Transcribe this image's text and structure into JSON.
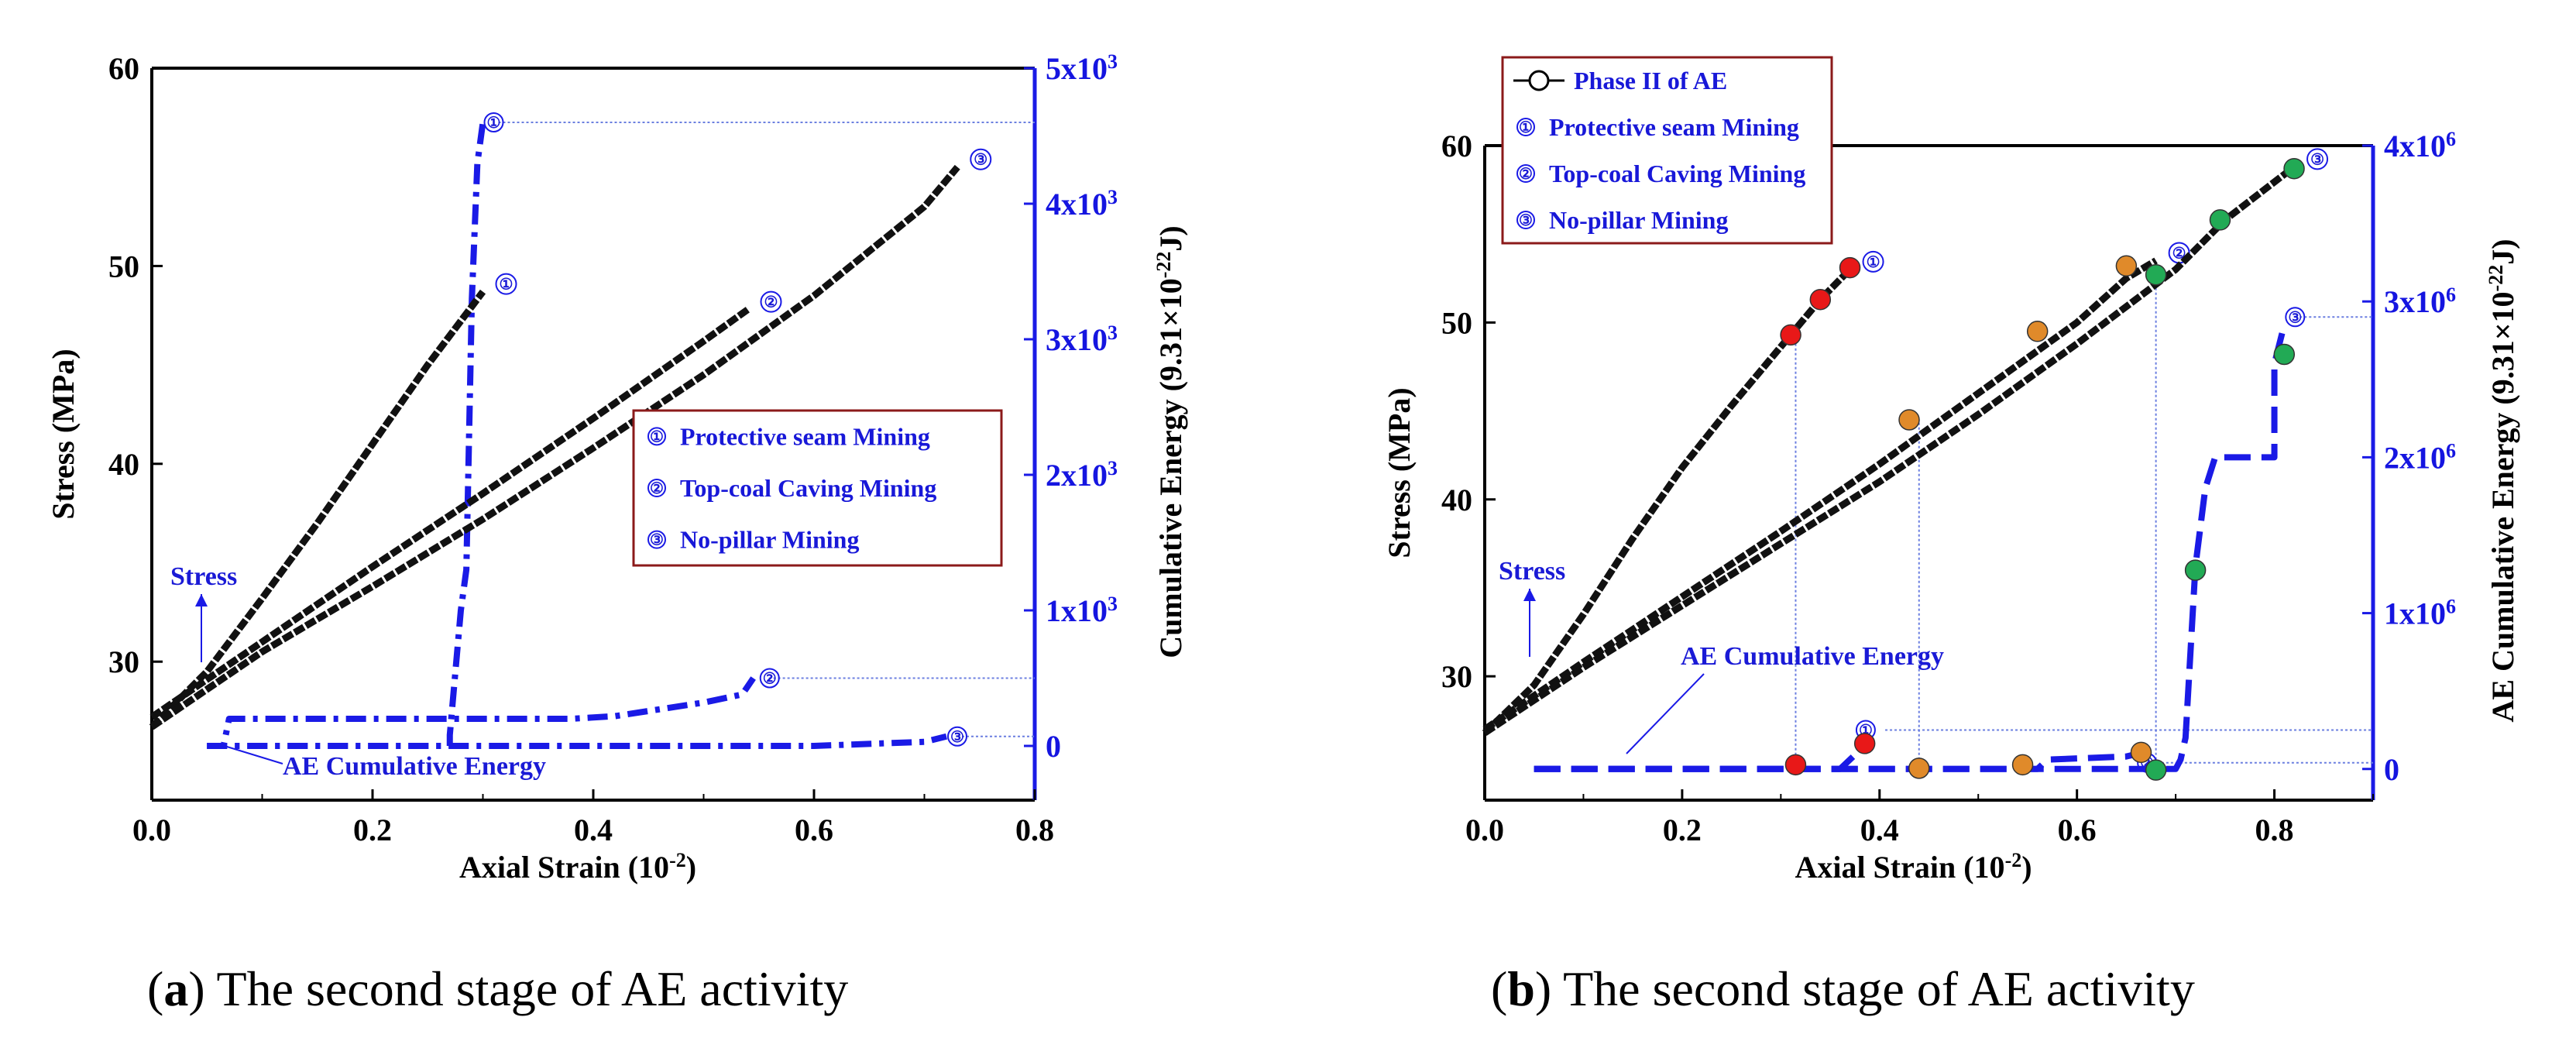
{
  "colors": {
    "stress": "#111111",
    "ae": "#1a1ae6",
    "red": "#e81818",
    "orange": "#e08a2a",
    "green": "#22aa55",
    "guide": "#6b7fe0"
  },
  "chart_data": [
    {
      "id": "a",
      "type": "line",
      "caption_label": "a",
      "caption_text": ") The second stage of AE activity",
      "caption_open": "(",
      "xlabel": "Axial Strain (10",
      "xlabel_sup": "-2",
      "xlabel_close": ")",
      "ylabel": "Stress (MPa)",
      "y2label": "Cumulative Energy (9.31×10",
      "y2label_sup": "-22",
      "y2label_close": "J)",
      "xlim": [
        0,
        0.8
      ],
      "ylim": [
        23,
        60
      ],
      "y2lim": [
        -400,
        5000
      ],
      "xticks": [
        {
          "v": 0.0,
          "label": "0.0"
        },
        {
          "v": 0.2,
          "label": "0.2"
        },
        {
          "v": 0.4,
          "label": "0.4"
        },
        {
          "v": 0.6,
          "label": "0.6"
        },
        {
          "v": 0.8,
          "label": "0.8"
        }
      ],
      "yticks": [
        {
          "v": 30,
          "label": "30"
        },
        {
          "v": 40,
          "label": "40"
        },
        {
          "v": 50,
          "label": "50"
        },
        {
          "v": 60,
          "label": "60"
        }
      ],
      "y2ticks": [
        {
          "v": 0,
          "label": "0",
          "sup": ""
        },
        {
          "v": 1000,
          "label": "1x10",
          "sup": "3"
        },
        {
          "v": 2000,
          "label": "2x10",
          "sup": "3"
        },
        {
          "v": 3000,
          "label": "3x10",
          "sup": "3"
        },
        {
          "v": 4000,
          "label": "4x10",
          "sup": "3"
        },
        {
          "v": 5000,
          "label": "5x10",
          "sup": "3"
        }
      ],
      "legend": {
        "placement": "middle-right",
        "entries": [
          {
            "marker": "①",
            "label": "Protective seam Mining"
          },
          {
            "marker": "②",
            "label": "Top-coal Caving Mining"
          },
          {
            "marker": "③",
            "label": "No-pillar Mining"
          }
        ]
      },
      "annotations": {
        "stress": "Stress",
        "ae": "AE Cumulative Energy"
      },
      "stress_series": [
        {
          "name": "Protective seam Mining",
          "marker": "①",
          "points": [
            [
              0.0,
              26.7
            ],
            [
              0.05,
              29.5
            ],
            [
              0.1,
              33.2
            ],
            [
              0.15,
              37.0
            ],
            [
              0.2,
              41.0
            ],
            [
              0.25,
              45.0
            ],
            [
              0.3,
              48.7
            ]
          ]
        },
        {
          "name": "Top-coal Caving Mining",
          "marker": "②",
          "points": [
            [
              0.0,
              27.2
            ],
            [
              0.1,
              31.0
            ],
            [
              0.2,
              34.8
            ],
            [
              0.3,
              38.5
            ],
            [
              0.4,
              42.3
            ],
            [
              0.5,
              46.2
            ],
            [
              0.54,
              47.8
            ]
          ]
        },
        {
          "name": "No-pillar Mining",
          "marker": "③",
          "points": [
            [
              0.0,
              26.7
            ],
            [
              0.1,
              30.5
            ],
            [
              0.2,
              33.8
            ],
            [
              0.3,
              37.2
            ],
            [
              0.4,
              40.8
            ],
            [
              0.5,
              44.5
            ],
            [
              0.6,
              48.5
            ],
            [
              0.7,
              53.0
            ],
            [
              0.73,
              55.0
            ]
          ]
        }
      ],
      "ae_series": [
        {
          "name": "Protective seam Mining",
          "marker": "①",
          "end_label": [
            0.3,
            4600
          ],
          "guide_to_x": 0.8,
          "points": [
            [
              0.05,
              0
            ],
            [
              0.27,
              0
            ],
            [
              0.27,
              80
            ],
            [
              0.28,
              1000
            ],
            [
              0.285,
              1300
            ],
            [
              0.29,
              3300
            ],
            [
              0.295,
              4300
            ],
            [
              0.3,
              4600
            ]
          ]
        },
        {
          "name": "Top-coal Caving Mining",
          "marker": "②",
          "end_label": [
            0.55,
            500
          ],
          "guide_to_x": 0.8,
          "points": [
            [
              0.05,
              0
            ],
            [
              0.065,
              0
            ],
            [
              0.07,
              200
            ],
            [
              0.38,
              200
            ],
            [
              0.42,
              220
            ],
            [
              0.5,
              320
            ],
            [
              0.535,
              380
            ],
            [
              0.545,
              500
            ]
          ]
        },
        {
          "name": "No-pillar Mining",
          "marker": "③",
          "end_label": [
            0.72,
            70
          ],
          "guide_to_x": 0.8,
          "points": [
            [
              0.05,
              0
            ],
            [
              0.3,
              0
            ],
            [
              0.6,
              0
            ],
            [
              0.7,
              30
            ],
            [
              0.72,
              70
            ]
          ]
        }
      ]
    },
    {
      "id": "b",
      "type": "line",
      "caption_label": "b",
      "caption_text": ") The second stage of AE activity",
      "caption_open": "(",
      "xlabel": "Axial Strain (10",
      "xlabel_sup": "-2",
      "xlabel_close": ")",
      "ylabel": "Stress (MPa)",
      "y2label": "AE Cumulative Energy (9.31×10",
      "y2label_sup": "-22",
      "y2label_close": "J)",
      "xlim": [
        0,
        0.9
      ],
      "ylim": [
        23,
        60
      ],
      "y2lim": [
        -200000,
        4000000
      ],
      "xticks": [
        {
          "v": 0.0,
          "label": "0.0"
        },
        {
          "v": 0.2,
          "label": "0.2"
        },
        {
          "v": 0.4,
          "label": "0.4"
        },
        {
          "v": 0.6,
          "label": "0.6"
        },
        {
          "v": 0.8,
          "label": "0.8"
        }
      ],
      "yticks": [
        {
          "v": 30,
          "label": "30"
        },
        {
          "v": 40,
          "label": "40"
        },
        {
          "v": 50,
          "label": "50"
        },
        {
          "v": 60,
          "label": "60"
        }
      ],
      "y2ticks": [
        {
          "v": 0,
          "label": "0",
          "sup": ""
        },
        {
          "v": 1000000,
          "label": "1x10",
          "sup": "6"
        },
        {
          "v": 2000000,
          "label": "2x10",
          "sup": "6"
        },
        {
          "v": 3000000,
          "label": "3x10",
          "sup": "6"
        },
        {
          "v": 4000000,
          "label": "4x10",
          "sup": "6"
        }
      ],
      "legend": {
        "placement": "top-left",
        "entries": [
          {
            "marker": "line-circle",
            "label": "Phase II of AE"
          },
          {
            "marker": "①",
            "label": "Protective seam Mining"
          },
          {
            "marker": "②",
            "label": "Top-coal Caving Mining"
          },
          {
            "marker": "③",
            "label": "No-pillar Mining"
          }
        ]
      },
      "annotations": {
        "stress": "Stress",
        "ae": "AE Cumulative Energy"
      },
      "stress_series": [
        {
          "name": "Protective seam Mining",
          "marker": "①",
          "points": [
            [
              0.0,
              26.8
            ],
            [
              0.05,
              29.5
            ],
            [
              0.1,
              33.5
            ],
            [
              0.15,
              37.8
            ],
            [
              0.2,
              41.8
            ],
            [
              0.25,
              45.3
            ],
            [
              0.31,
              49.3
            ],
            [
              0.34,
              51.3
            ],
            [
              0.37,
              53.0
            ]
          ]
        },
        {
          "name": "Top-coal Caving Mining",
          "marker": "②",
          "points": [
            [
              0.0,
              27.0
            ],
            [
              0.1,
              30.8
            ],
            [
              0.2,
              34.5
            ],
            [
              0.3,
              38.2
            ],
            [
              0.4,
              42.0
            ],
            [
              0.5,
              46.0
            ],
            [
              0.6,
              50.0
            ],
            [
              0.65,
              52.5
            ],
            [
              0.68,
              53.5
            ]
          ]
        },
        {
          "name": "No-pillar Mining",
          "marker": "③",
          "points": [
            [
              0.0,
              26.8
            ],
            [
              0.1,
              30.5
            ],
            [
              0.2,
              34.0
            ],
            [
              0.3,
              37.5
            ],
            [
              0.4,
              41.0
            ],
            [
              0.5,
              44.8
            ],
            [
              0.6,
              48.8
            ],
            [
              0.7,
              53.0
            ],
            [
              0.75,
              55.8
            ],
            [
              0.82,
              58.8
            ]
          ]
        }
      ],
      "ae_series": [
        {
          "name": "Protective seam Mining",
          "marker": "①",
          "end_label": [
            0.375,
            250000
          ],
          "guide_to_x": 0.9,
          "points": [
            [
              0.05,
              0
            ],
            [
              0.36,
              0
            ],
            [
              0.37,
              60000
            ],
            [
              0.38,
              120000
            ],
            [
              0.39,
              160000
            ]
          ]
        },
        {
          "name": "Top-coal Caving Mining",
          "marker": "②",
          "end_label": [
            0.66,
            40000
          ],
          "guide_to_x": 0.9,
          "points": [
            [
              0.05,
              0
            ],
            [
              0.56,
              0
            ],
            [
              0.57,
              60000
            ],
            [
              0.65,
              80000
            ],
            [
              0.67,
              110000
            ]
          ]
        },
        {
          "name": "No-pillar Mining",
          "marker": "③",
          "end_label": [
            0.81,
            2900000
          ],
          "guide_to_x": 0.9,
          "points": [
            [
              0.05,
              0
            ],
            [
              0.7,
              0
            ],
            [
              0.705,
              60000
            ],
            [
              0.71,
              200000
            ],
            [
              0.72,
              1300000
            ],
            [
              0.73,
              1800000
            ],
            [
              0.74,
              2000000
            ],
            [
              0.8,
              2000000
            ],
            [
              0.8,
              2600000
            ],
            [
              0.81,
              2850000
            ]
          ]
        }
      ],
      "phase_points": [
        {
          "color": "red",
          "x": 0.31,
          "y": 49.3
        },
        {
          "color": "red",
          "x": 0.34,
          "y": 51.3
        },
        {
          "color": "red",
          "x": 0.37,
          "y": 53.1
        },
        {
          "color": "red",
          "x": 0.315,
          "y": 25.0
        },
        {
          "color": "red",
          "x": 0.385,
          "y": 26.2
        },
        {
          "color": "orange",
          "x": 0.43,
          "y": 44.5
        },
        {
          "color": "orange",
          "x": 0.56,
          "y": 49.5
        },
        {
          "color": "orange",
          "x": 0.65,
          "y": 53.2
        },
        {
          "color": "orange",
          "x": 0.44,
          "y": 24.8
        },
        {
          "color": "orange",
          "x": 0.545,
          "y": 25.0
        },
        {
          "color": "orange",
          "x": 0.665,
          "y": 25.7
        },
        {
          "color": "green",
          "x": 0.68,
          "y": 52.7
        },
        {
          "color": "green",
          "x": 0.745,
          "y": 55.8
        },
        {
          "color": "green",
          "x": 0.82,
          "y": 58.7
        },
        {
          "color": "green",
          "x": 0.68,
          "y": 24.7
        },
        {
          "color": "green",
          "x": 0.72,
          "y": 36.0
        },
        {
          "color": "green",
          "x": 0.81,
          "y": 48.2
        }
      ],
      "guides_x": [
        0.315,
        0.44,
        0.68
      ]
    }
  ]
}
